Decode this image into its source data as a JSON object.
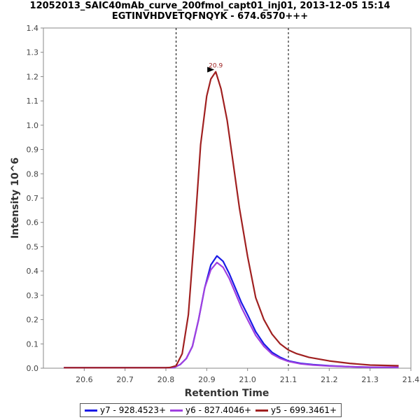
{
  "chart_data": {
    "type": "line",
    "title_line1": "12052013_SAIC40mAb_curve_200fmol_capt01_inj01, 2013-12-05 15:14",
    "title_line2": "EGTINVHDVETQFNQYK - 674.6570+++",
    "xlabel": "Retention Time",
    "ylabel": "Intensity 10^6",
    "xlim": [
      20.5,
      21.4
    ],
    "ylim": [
      0.0,
      1.4
    ],
    "xticks": [
      20.6,
      20.7,
      20.8,
      20.9,
      21.0,
      21.1,
      21.2,
      21.3,
      21.4
    ],
    "xtick_labels": [
      "20.6",
      "20.7",
      "20.8",
      "20.9",
      "21.0",
      "21.1",
      "21.2",
      "21.3",
      "21.4"
    ],
    "yticks": [
      0.0,
      0.1,
      0.2,
      0.3,
      0.4,
      0.5,
      0.6,
      0.7,
      0.8,
      0.9,
      1.0,
      1.1,
      1.2,
      1.3,
      1.4
    ],
    "ytick_labels": [
      "0.0",
      "0.1",
      "0.2",
      "0.3",
      "0.4",
      "0.5",
      "0.6",
      "0.7",
      "0.8",
      "0.9",
      "1.0",
      "1.1",
      "1.2",
      "1.3",
      "1.4"
    ],
    "integration_bounds": [
      20.825,
      21.1
    ],
    "peak_annotation": {
      "label": "20.9",
      "x": 20.922,
      "y": 1.22
    },
    "legend_position": "bottom",
    "series": [
      {
        "name": "y7 - 928.4523+",
        "color": "#1a1ae6",
        "x": [
          20.55,
          20.6,
          20.7,
          20.8,
          20.82,
          20.835,
          20.85,
          20.865,
          20.88,
          20.895,
          20.91,
          20.925,
          20.94,
          20.955,
          20.97,
          20.985,
          21.0,
          21.02,
          21.04,
          21.06,
          21.08,
          21.1,
          21.13,
          21.16,
          21.2,
          21.25,
          21.3,
          21.37
        ],
        "values": [
          0.002,
          0.002,
          0.002,
          0.002,
          0.003,
          0.015,
          0.04,
          0.09,
          0.2,
          0.33,
          0.425,
          0.462,
          0.44,
          0.39,
          0.33,
          0.27,
          0.22,
          0.15,
          0.1,
          0.065,
          0.045,
          0.03,
          0.02,
          0.015,
          0.01,
          0.006,
          0.004,
          0.004
        ]
      },
      {
        "name": "y6 - 827.4046+",
        "color": "#a040e0",
        "x": [
          20.55,
          20.6,
          20.7,
          20.8,
          20.82,
          20.835,
          20.85,
          20.865,
          20.88,
          20.895,
          20.91,
          20.925,
          20.94,
          20.955,
          20.97,
          20.985,
          21.0,
          21.02,
          21.04,
          21.06,
          21.08,
          21.1,
          21.13,
          21.16,
          21.2,
          21.25,
          21.3,
          21.37
        ],
        "values": [
          0.002,
          0.002,
          0.002,
          0.002,
          0.003,
          0.015,
          0.04,
          0.09,
          0.2,
          0.33,
          0.405,
          0.435,
          0.415,
          0.37,
          0.31,
          0.25,
          0.2,
          0.135,
          0.09,
          0.058,
          0.04,
          0.028,
          0.018,
          0.013,
          0.009,
          0.006,
          0.004,
          0.004
        ]
      },
      {
        "name": "y5 - 699.3461+",
        "color": "#a02020",
        "x": [
          20.55,
          20.6,
          20.7,
          20.8,
          20.81,
          20.825,
          20.84,
          20.855,
          20.87,
          20.885,
          20.9,
          20.91,
          20.922,
          20.935,
          20.95,
          20.965,
          20.98,
          21.0,
          21.02,
          21.04,
          21.06,
          21.08,
          21.1,
          21.12,
          21.15,
          21.2,
          21.25,
          21.3,
          21.37
        ],
        "values": [
          0.002,
          0.002,
          0.002,
          0.002,
          0.003,
          0.01,
          0.06,
          0.22,
          0.55,
          0.92,
          1.12,
          1.19,
          1.22,
          1.15,
          1.02,
          0.84,
          0.66,
          0.46,
          0.29,
          0.2,
          0.14,
          0.1,
          0.075,
          0.06,
          0.045,
          0.03,
          0.02,
          0.013,
          0.01
        ]
      }
    ]
  }
}
